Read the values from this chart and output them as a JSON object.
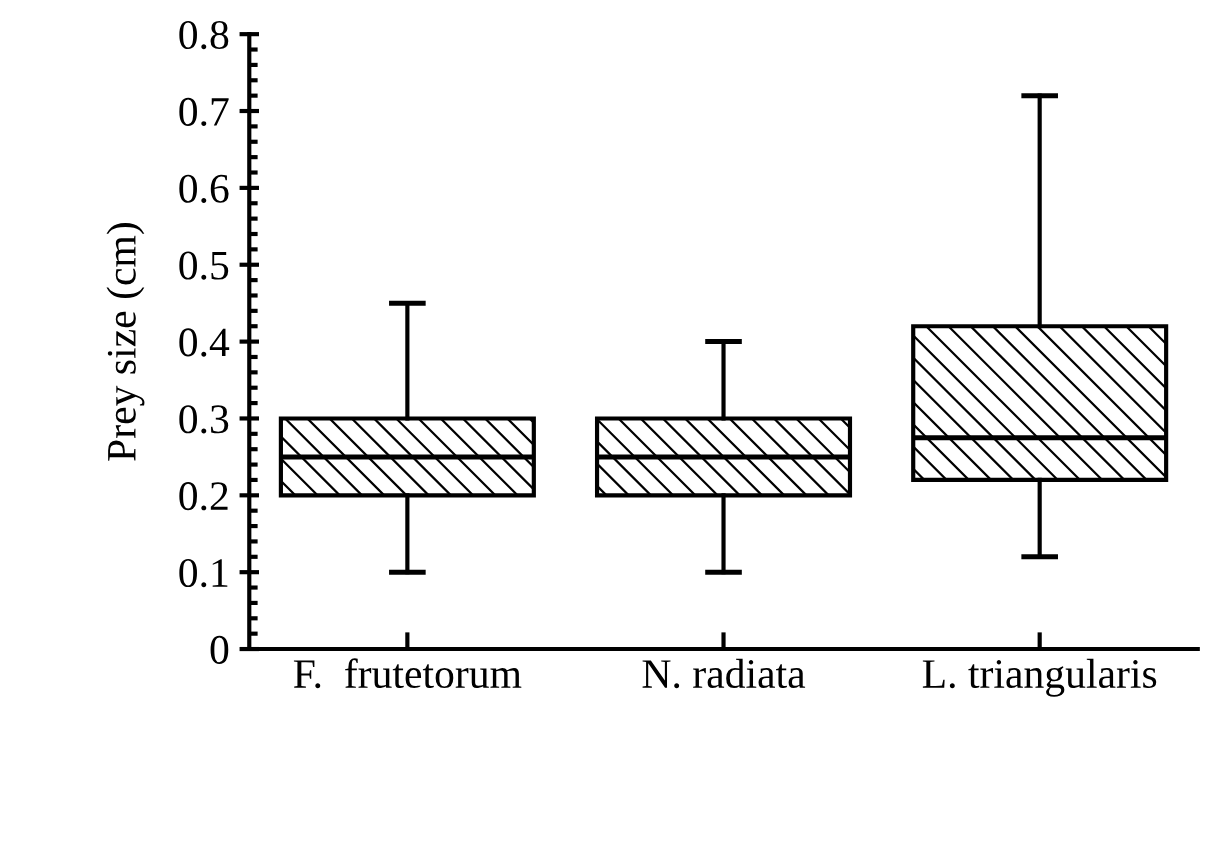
{
  "chart_data": {
    "type": "box",
    "ylabel": "Prey size (cm)",
    "categories": [
      "F.  frutetorum",
      "N. radiata",
      "L. triangularis"
    ],
    "boxes": [
      {
        "low": 0.1,
        "q1": 0.2,
        "median": 0.25,
        "q3": 0.3,
        "high": 0.45
      },
      {
        "low": 0.1,
        "q1": 0.2,
        "median": 0.25,
        "q3": 0.3,
        "high": 0.4
      },
      {
        "low": 0.12,
        "q1": 0.22,
        "median": 0.275,
        "q3": 0.42,
        "high": 0.72
      }
    ],
    "ylim": [
      0,
      0.8
    ],
    "yticks": [
      0,
      0.1,
      0.2,
      0.3,
      0.4,
      0.5,
      0.6,
      0.7,
      0.8
    ],
    "grid": false
  }
}
